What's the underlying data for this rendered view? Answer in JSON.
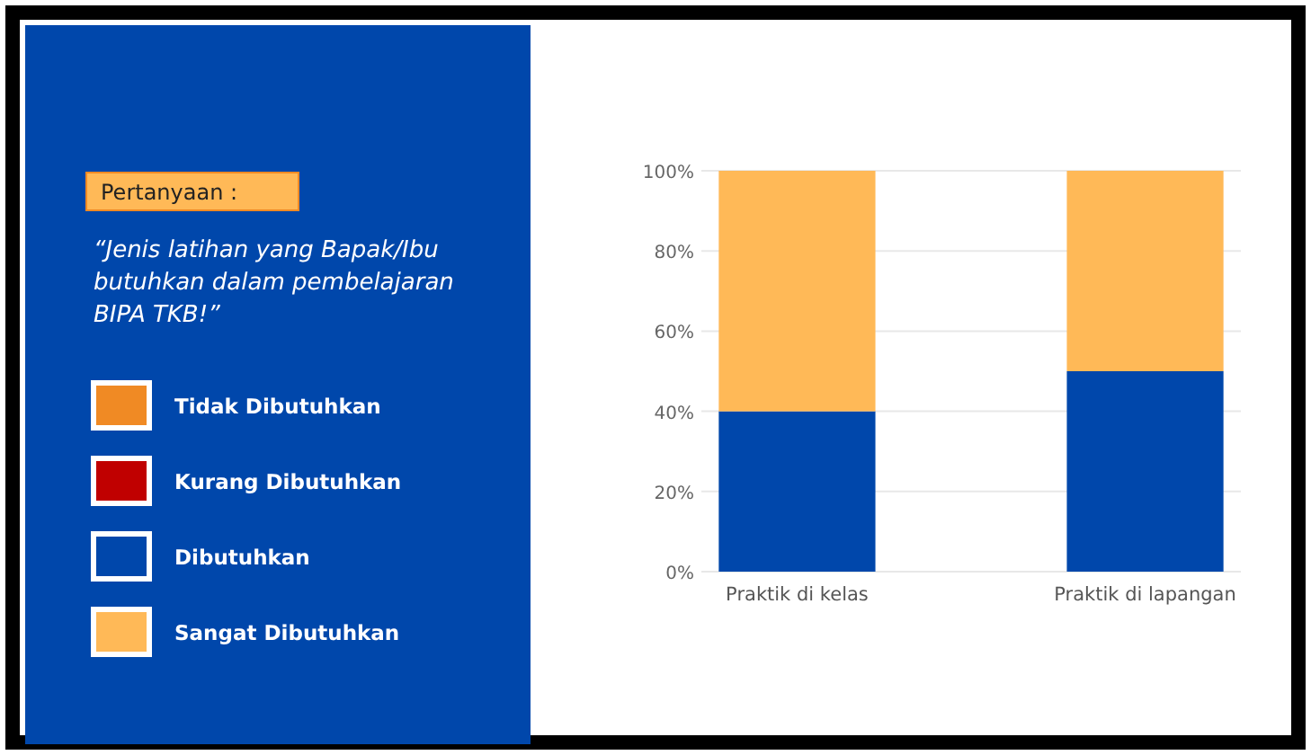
{
  "chart_data": {
    "type": "bar",
    "title": "Pertanyaan :",
    "subtitle": "“Jenis latihan yang Bapak/Ibu butuhkan dalam pembelajaran BIPA TKB!”",
    "categories": [
      "Praktik di kelas",
      "Praktik di lapangan"
    ],
    "series": [
      {
        "name": "Tidak Dibutuhkan",
        "color": "#f08a24",
        "values": [
          0,
          0
        ]
      },
      {
        "name": "Kurang Dibutuhkan",
        "color": "#c00000",
        "values": [
          0,
          0
        ]
      },
      {
        "name": "Dibutuhkan",
        "color": "#0047ab",
        "values": [
          40,
          50
        ]
      },
      {
        "name": "Sangat Dibutuhkan",
        "color": "#ffb957",
        "values": [
          60,
          50
        ]
      }
    ],
    "stacked": true,
    "ylim": [
      0,
      100
    ],
    "yticks": [
      {
        "value": 0,
        "label": "0%"
      },
      {
        "value": 20,
        "label": "20%"
      },
      {
        "value": 40,
        "label": "40%"
      },
      {
        "value": 60,
        "label": "60%"
      },
      {
        "value": 80,
        "label": "80%"
      },
      {
        "value": 100,
        "label": "100%"
      }
    ],
    "grid": "y",
    "legend": "left"
  }
}
